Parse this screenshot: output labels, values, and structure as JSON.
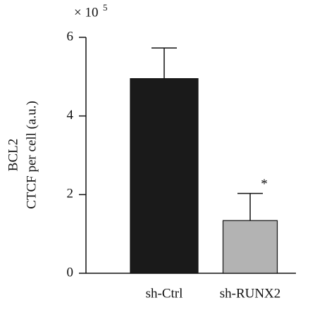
{
  "chart_data": {
    "type": "bar",
    "y_label_lines": [
      "BCL2",
      "CTCF per cell (a.u.)"
    ],
    "multiplier": {
      "base": "× 10",
      "exponent": "5"
    },
    "categories": [
      "sh-Ctrl",
      "sh-RUNX2"
    ],
    "values": [
      4.95,
      1.34
    ],
    "errors": [
      0.78,
      0.69
    ],
    "colors": [
      "#1a1a1a",
      "#b3b3b3"
    ],
    "annotations": [
      null,
      "*"
    ],
    "ylim": [
      0,
      6
    ],
    "yticks": [
      0,
      2,
      4,
      6
    ]
  }
}
